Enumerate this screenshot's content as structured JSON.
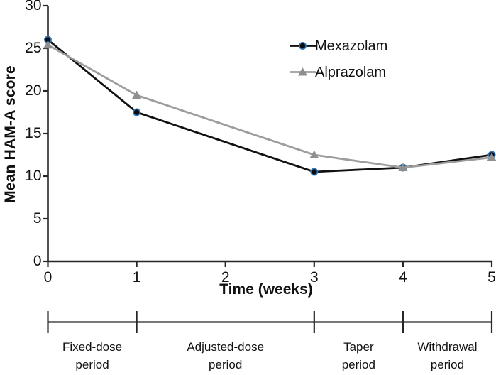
{
  "chart_data": {
    "type": "line",
    "title": "",
    "xlabel": "Time (weeks)",
    "ylabel": "Mean HAM-A score",
    "x": [
      0,
      1,
      3,
      4,
      5
    ],
    "xlim": [
      0,
      5
    ],
    "ylim": [
      0,
      30
    ],
    "xticks": [
      "0",
      "1",
      "2",
      "3",
      "4",
      "5"
    ],
    "yticks": [
      "0",
      "5",
      "10",
      "15",
      "20",
      "25",
      "30"
    ],
    "grid": false,
    "legend_position": "upper-right-inside",
    "axis_color": "#262626",
    "series": [
      {
        "name": "Mexazolam",
        "marker": "circle",
        "line_color": "#111111",
        "marker_fill": "#0b0b14",
        "marker_ring": "#2e75b6",
        "values": [
          26.0,
          17.5,
          10.5,
          11.0,
          12.5
        ]
      },
      {
        "name": "Alprazolam",
        "marker": "triangle",
        "line_color": "#9d9d9d",
        "marker_fill": "#8f8f8f",
        "values": [
          25.4,
          19.5,
          12.5,
          11.0,
          12.2
        ]
      }
    ],
    "periods": [
      {
        "line1": "Fixed-dose",
        "line2": "period",
        "from": 0,
        "to": 1
      },
      {
        "line1": "Adjusted-dose",
        "line2": "period",
        "from": 1,
        "to": 3
      },
      {
        "line1": "Taper",
        "line2": "period",
        "from": 3,
        "to": 4
      },
      {
        "line1": "Withdrawal",
        "line2": "period",
        "from": 4,
        "to": 5
      }
    ]
  }
}
